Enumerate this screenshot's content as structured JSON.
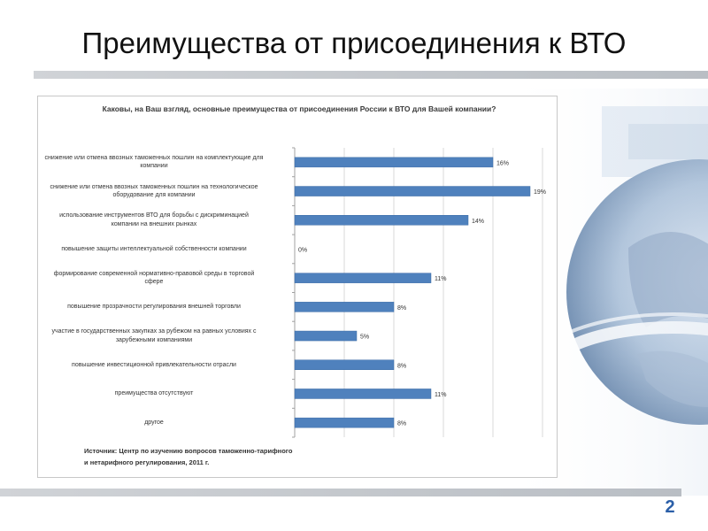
{
  "slide": {
    "title": "Преимущества от присоединения к ВТО",
    "page_number": "2"
  },
  "colors": {
    "bar": "#4f81bd",
    "bar_border": "#3a6aa5",
    "grid": "#d9d9d9",
    "accent": "#2b5fa8"
  },
  "chart_data": {
    "type": "bar",
    "orientation": "horizontal",
    "title": "Каковы, на Ваш взгляд, основные преимущества от присоединения России к ВТО для Вашей компании?",
    "categories": [
      [
        "снижение или отмена ввозных таможенных пошлин на комплектующие для",
        "компании"
      ],
      [
        "снижение или отмена ввозных таможенных пошлин на технологическое",
        "оборудование для компании"
      ],
      [
        "использование инструментов ВТО для борьбы с дискриминацией",
        "компании на внешних рынках"
      ],
      [
        "повышение защиты интеллектуальной собственности компании"
      ],
      [
        "формирование современной нормативно-правовой среды в торговой",
        "сфере"
      ],
      [
        "повышение прозрачности регулирования внешней торговли"
      ],
      [
        "участие в государственных закупках за рубежом на равных условиях с",
        "зарубежными компаниями"
      ],
      [
        "повышение инвестиционной привлекательности отрасли"
      ],
      [
        "преимущества отсутствуют"
      ],
      [
        "другое"
      ]
    ],
    "values": [
      16,
      19,
      14,
      0,
      11,
      8,
      5,
      8,
      11,
      8
    ],
    "data_labels": [
      "16%",
      "19%",
      "14%",
      "0%",
      "11%",
      "8%",
      "5%",
      "8%",
      "11%",
      "8%"
    ],
    "xlim": [
      0,
      20
    ],
    "grid": true,
    "legend": "none"
  },
  "source": {
    "line1": "Источник: Центр по изучению вопросов таможенно-тарифного",
    "line2": "и нетарифного регулирования, 2011 г."
  }
}
